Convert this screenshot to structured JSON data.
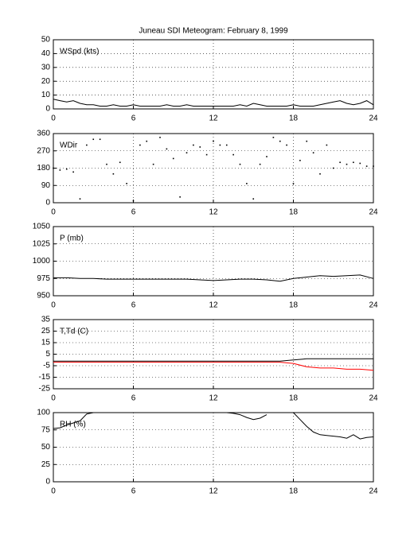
{
  "chart_data": [
    {
      "type": "line",
      "title": "Juneau SDI Meteogram:  February  8, 1999",
      "label": "WSpd (kts)",
      "x": [
        0,
        0.5,
        1,
        1.5,
        2,
        2.5,
        3,
        3.5,
        4,
        4.5,
        5,
        5.5,
        6,
        6.5,
        7,
        7.5,
        8,
        8.5,
        9,
        9.5,
        10,
        10.5,
        11,
        11.5,
        12,
        12.5,
        13,
        13.5,
        14,
        14.5,
        15,
        15.5,
        16,
        16.5,
        17,
        17.5,
        18,
        18.5,
        19,
        19.5,
        20,
        20.5,
        21,
        21.5,
        22,
        22.5,
        23,
        23.5,
        24
      ],
      "series": [
        {
          "color": "#000000",
          "values": [
            7,
            6,
            5,
            6,
            4,
            3,
            3,
            2,
            2,
            3,
            2,
            2,
            3,
            2,
            2,
            2,
            2,
            3,
            2,
            2,
            3,
            2,
            2,
            2,
            2,
            2,
            2,
            2,
            3,
            2,
            4,
            3,
            2,
            2,
            2,
            2,
            3,
            2,
            2,
            2,
            3,
            4,
            5,
            6,
            4,
            3,
            4,
            6,
            3
          ]
        }
      ],
      "xlim": [
        0,
        24
      ],
      "xticks": [
        0,
        6,
        12,
        18,
        24
      ],
      "ylim": [
        0,
        50
      ],
      "yticks": [
        0,
        10,
        20,
        30,
        40,
        50
      ],
      "grid": true
    },
    {
      "type": "scatter",
      "label": "WDir",
      "x": [
        0,
        0.5,
        1,
        1.5,
        2,
        2.5,
        3,
        3.5,
        4,
        4.5,
        5,
        5.5,
        6,
        6.5,
        7,
        7.5,
        8,
        8.5,
        9,
        9.5,
        10,
        10.5,
        11,
        11.5,
        12,
        12.5,
        13,
        13.5,
        14,
        14.5,
        15,
        15.5,
        16,
        16.5,
        17,
        17.5,
        18,
        18.5,
        19,
        19.5,
        20,
        20.5,
        21,
        21.5,
        22,
        22.5,
        23,
        23.5,
        24
      ],
      "series": [
        {
          "color": "#000000",
          "values": [
            180,
            170,
            175,
            160,
            20,
            300,
            330,
            330,
            200,
            150,
            210,
            100,
            10,
            300,
            320,
            200,
            340,
            280,
            230,
            30,
            260,
            300,
            290,
            250,
            320,
            300,
            300,
            250,
            200,
            100,
            20,
            200,
            240,
            340,
            320,
            300,
            100,
            220,
            320,
            260,
            150,
            300,
            180,
            210,
            200,
            210,
            205,
            190,
            190
          ]
        }
      ],
      "xlim": [
        0,
        24
      ],
      "xticks": [
        0,
        6,
        12,
        18,
        24
      ],
      "ylim": [
        0,
        360
      ],
      "yticks": [
        0,
        90,
        180,
        270,
        360
      ],
      "grid": true
    },
    {
      "type": "line",
      "label": "P (mb)",
      "x": [
        0,
        1,
        2,
        3,
        4,
        5,
        6,
        7,
        8,
        9,
        10,
        11,
        12,
        13,
        14,
        15,
        16,
        17,
        18,
        19,
        20,
        21,
        22,
        23,
        24
      ],
      "series": [
        {
          "color": "#000000",
          "values": [
            976,
            976,
            975,
            975,
            974,
            974,
            974,
            974,
            974,
            974,
            974,
            973,
            972,
            973,
            974,
            974,
            973,
            971,
            975,
            977,
            979,
            978,
            979,
            980,
            975
          ]
        }
      ],
      "xlim": [
        0,
        24
      ],
      "xticks": [
        0,
        6,
        12,
        18,
        24
      ],
      "ylim": [
        950,
        1050
      ],
      "yticks": [
        950,
        975,
        1000,
        1025,
        1050
      ],
      "grid": true
    },
    {
      "type": "line",
      "label": "T,Td (C)",
      "x": [
        0,
        1,
        2,
        3,
        4,
        5,
        6,
        7,
        8,
        9,
        10,
        11,
        12,
        13,
        14,
        15,
        16,
        17,
        18,
        19,
        20,
        21,
        22,
        23,
        24
      ],
      "series": [
        {
          "color": "#000000",
          "values": [
            -1,
            -1,
            -1,
            -1,
            -1,
            -1,
            -1,
            -1,
            -1,
            -1,
            -1,
            -1,
            -1,
            -1,
            -1,
            -1,
            -1,
            -1,
            0,
            1,
            1,
            1,
            1,
            1,
            1
          ]
        },
        {
          "color": "#ff0000",
          "values": [
            -2,
            -2,
            -2,
            -2,
            -2,
            -2,
            -2,
            -2,
            -2,
            -2,
            -2,
            -2,
            -2,
            -2,
            -2,
            -2,
            -2,
            -2,
            -3,
            -6,
            -7,
            -7,
            -8,
            -8,
            -9
          ]
        }
      ],
      "xlim": [
        0,
        24
      ],
      "xticks": [
        0,
        6,
        12,
        18,
        24
      ],
      "ylim": [
        -25,
        35
      ],
      "yticks": [
        -25,
        -15,
        -5,
        5,
        15,
        25,
        35
      ],
      "grid": true
    },
    {
      "type": "line",
      "label": "RH (%)",
      "x": [
        0,
        0.5,
        1,
        1.5,
        2,
        2.5,
        3,
        4,
        5,
        6,
        6.5,
        12,
        12.5,
        13,
        13.5,
        14,
        14.5,
        15,
        15.5,
        16,
        16.5,
        17.5,
        18,
        18.5,
        19,
        19.5,
        20,
        20.5,
        21,
        21.5,
        22,
        22.5,
        23,
        23.5,
        24
      ],
      "series": [
        {
          "color": "#000000",
          "values": [
            77,
            78,
            82,
            85,
            88,
            98,
            100,
            100,
            100,
            100,
            null,
            100,
            100,
            100,
            99,
            97,
            93,
            90,
            92,
            97,
            null,
            100,
            100,
            90,
            80,
            72,
            68,
            67,
            66,
            65,
            63,
            68,
            62,
            64,
            65
          ]
        }
      ],
      "xlim": [
        0,
        24
      ],
      "xticks": [
        0,
        6,
        12,
        18,
        24
      ],
      "ylim": [
        0,
        100
      ],
      "yticks": [
        0,
        25,
        50,
        75,
        100
      ],
      "grid": true
    }
  ]
}
